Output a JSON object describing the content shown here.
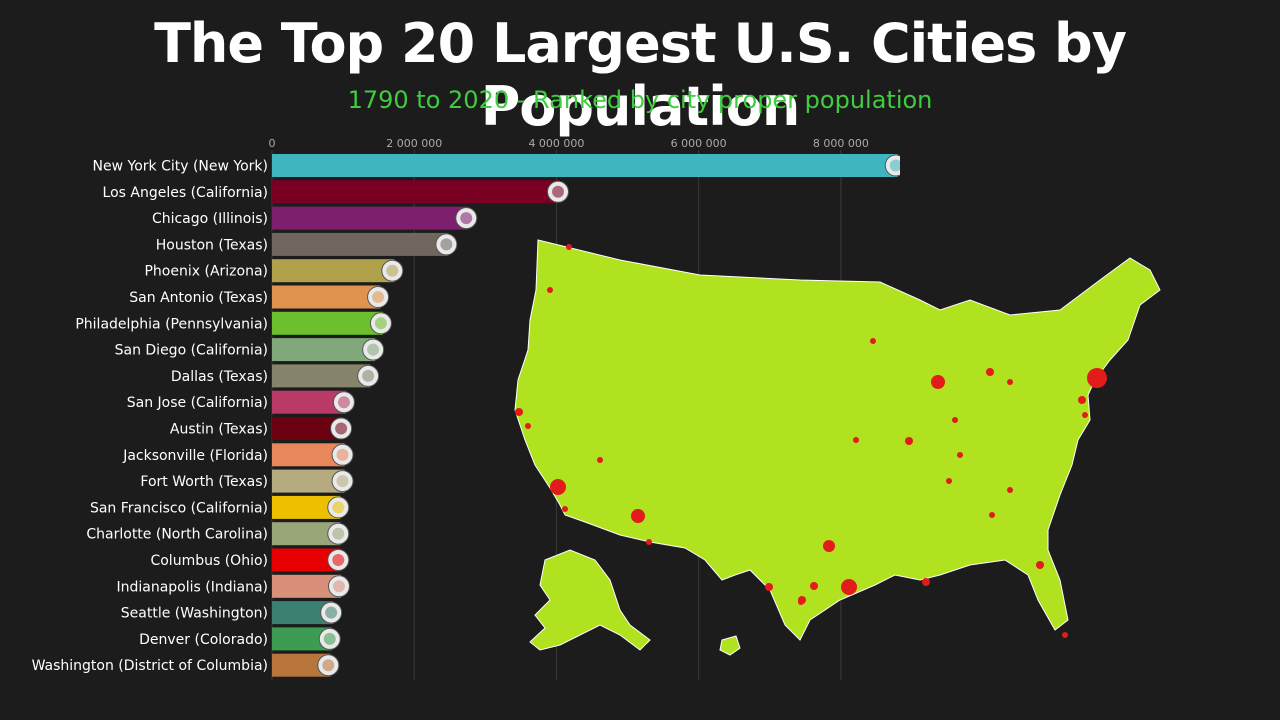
{
  "header": {
    "title": "The Top 20 Largest U.S. Cities by Population",
    "subtitle": "1790 to 2020 - Ranked by city proper population"
  },
  "chart_data": {
    "type": "bar",
    "orientation": "horizontal",
    "xlim": [
      0,
      9000000
    ],
    "ticks": [
      0,
      2000000,
      4000000,
      6000000,
      8000000
    ],
    "tick_labels": [
      "0",
      "2 000 000",
      "4 000 000",
      "6 000 000",
      "8 000 000"
    ],
    "grid": true,
    "categories": [
      "New York City (New York)",
      "Los Angeles (California)",
      "Chicago (Illinois)",
      "Houston (Texas)",
      "Phoenix (Arizona)",
      "San Antonio (Texas)",
      "Philadelphia (Pennsylvania)",
      "San Diego (California)",
      "Dallas (Texas)",
      "San Jose (California)",
      "Austin (Texas)",
      "Jacksonville (Florida)",
      "Fort Worth (Texas)",
      "San Francisco (California)",
      "Charlotte (North Carolina)",
      "Columbus (Ohio)",
      "Indianapolis (Indiana)",
      "Seattle (Washington)",
      "Denver (Colorado)",
      "Washington (District of Columbia)"
    ],
    "values": [
      8800000,
      4050000,
      2760000,
      2480000,
      1720000,
      1520000,
      1560000,
      1450000,
      1380000,
      1040000,
      1000000,
      1020000,
      1020000,
      960000,
      960000,
      960000,
      970000,
      860000,
      840000,
      820000
    ],
    "colors": [
      "#3fb6bf",
      "#7a0023",
      "#7d1f6e",
      "#6f665e",
      "#b0a24b",
      "#e0934e",
      "#6dbf2e",
      "#80a87a",
      "#86846b",
      "#b83a69",
      "#6b0011",
      "#e8875c",
      "#b5aa80",
      "#ecc000",
      "#98a679",
      "#e80000",
      "#d9907b",
      "#3c8071",
      "#3d9c52",
      "#b8763d"
    ]
  },
  "map": {
    "fill_color": "#b0e21f",
    "dot_color": "#e21b1b",
    "background": "#1c1c1c"
  }
}
